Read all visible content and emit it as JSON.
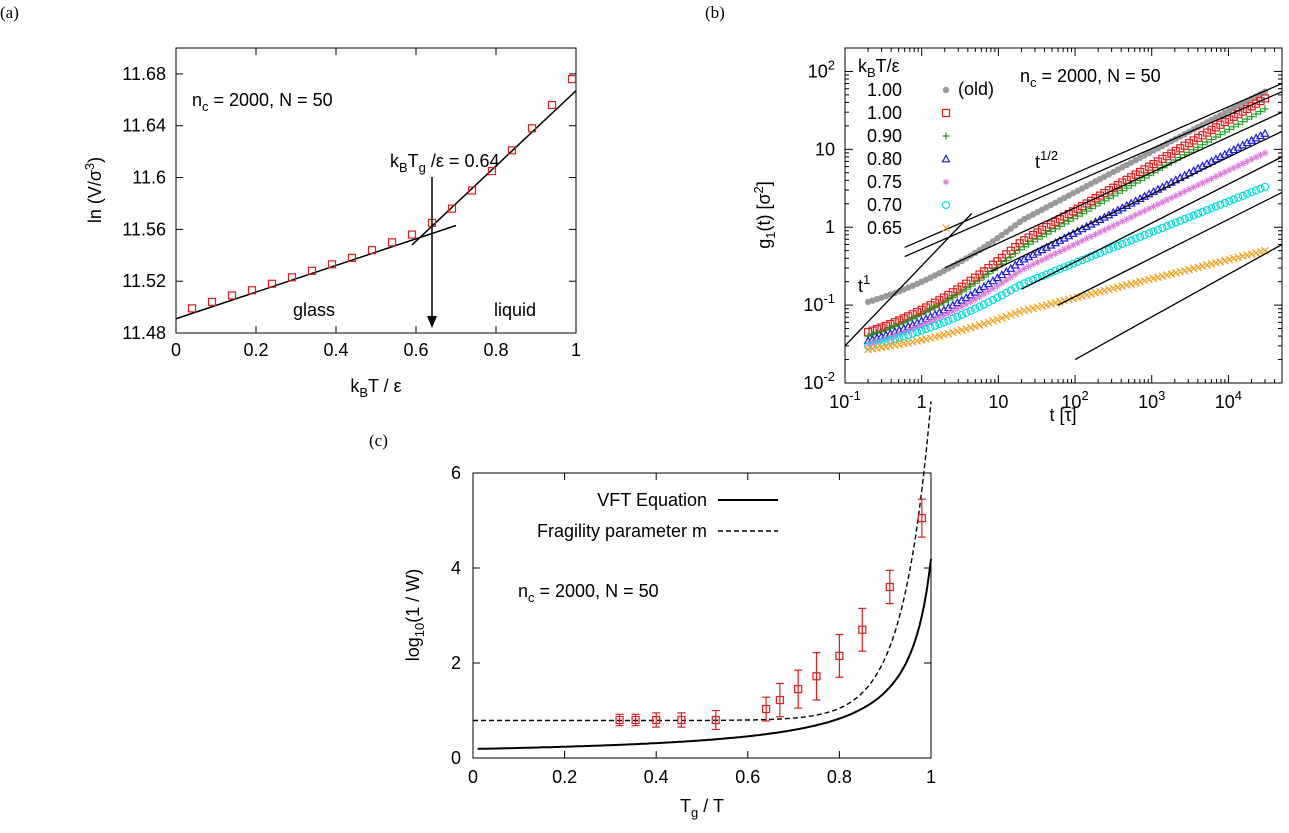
{
  "chart_data": [
    {
      "panel_label": "(a)",
      "type": "scatter",
      "annotation": "n_c = 2000, N = 50",
      "xlim": [
        0,
        1
      ],
      "ylim": [
        11.48,
        11.7
      ],
      "xticks": [
        "0",
        "0.2",
        "0.4",
        "0.6",
        "0.8",
        "1"
      ],
      "yticks": [
        "11.48",
        "11.52",
        "11.56",
        "11.6",
        "11.64",
        "11.68"
      ],
      "xlabel_parts": [
        "k",
        "B",
        "T / ε"
      ],
      "ylabel_parts": [
        "ln (V/σ",
        "3",
        ")"
      ],
      "tg_label_parts": [
        "k",
        "B",
        "T",
        "g",
        " /ε = 0.64"
      ],
      "tg": 0.64,
      "region_labels": [
        "glass",
        "liquid"
      ],
      "points": {
        "x": [
          0.04,
          0.09,
          0.14,
          0.19,
          0.24,
          0.29,
          0.34,
          0.39,
          0.44,
          0.49,
          0.54,
          0.59,
          0.64,
          0.69,
          0.74,
          0.79,
          0.84,
          0.89,
          0.94,
          0.99
        ],
        "y": [
          11.499,
          11.504,
          11.509,
          11.513,
          11.518,
          11.523,
          11.528,
          11.533,
          11.538,
          11.544,
          11.55,
          11.556,
          11.565,
          11.576,
          11.59,
          11.605,
          11.621,
          11.638,
          11.656,
          11.676
        ]
      },
      "fit_glass": {
        "x": [
          0,
          0.7
        ],
        "y": [
          11.491,
          11.563
        ]
      },
      "fit_liquid": {
        "x": [
          0.59,
          1.0
        ],
        "y": [
          11.548,
          11.667
        ]
      },
      "marker_color": "#e41a1c"
    },
    {
      "panel_label": "(b)",
      "type": "scatter",
      "xscale": "log",
      "yscale": "log",
      "xlim": [
        0.1,
        50000
      ],
      "ylim": [
        0.01,
        200
      ],
      "xlabel": "t [τ]",
      "ylabel_parts": [
        "g",
        "1",
        "(t) [σ",
        "2",
        "]"
      ],
      "annotation": "n_c = 2000, N = 50",
      "legend_title_parts": [
        "k",
        "B",
        "T/ε"
      ],
      "slope_labels": [
        {
          "base": "t",
          "exp": "1/2"
        },
        {
          "base": "t",
          "exp": "1"
        }
      ],
      "xticks": [
        {
          "base": "10",
          "exp": "-1"
        },
        {
          "base": "1",
          "exp": ""
        },
        {
          "base": "10",
          "exp": ""
        },
        {
          "base": "10",
          "exp": "2"
        },
        {
          "base": "10",
          "exp": "3"
        },
        {
          "base": "10",
          "exp": "4"
        }
      ],
      "yticks": [
        {
          "base": "10",
          "exp": "-2"
        },
        {
          "base": "10",
          "exp": "-1"
        },
        {
          "base": "1",
          "exp": ""
        },
        {
          "base": "10",
          "exp": ""
        },
        {
          "base": "10",
          "exp": "2"
        }
      ],
      "series": [
        {
          "name": "1.00",
          "tag": "(old)",
          "marker": "dot",
          "color": "#9a9a9a",
          "a": 0.28,
          "y0": 0.11,
          "y_end": 55
        },
        {
          "name": "1.00",
          "marker": "square",
          "color": "#e41a1c",
          "a": 0.25,
          "y0": 0.045,
          "y_end": 45
        },
        {
          "name": "0.90",
          "marker": "plus",
          "color": "#1a9e1a",
          "a": 0.24,
          "y0": 0.04,
          "y_end": 33
        },
        {
          "name": "0.80",
          "marker": "triangle",
          "color": "#1a1ae0",
          "a": 0.12,
          "y0": 0.035,
          "y_end": 16
        },
        {
          "name": "0.75",
          "marker": "star",
          "color": "#dd77dd",
          "a": 0.1,
          "y0": 0.032,
          "y_end": 9
        },
        {
          "name": "0.70",
          "marker": "circle",
          "color": "#00dddd",
          "a": 0.07,
          "y0": 0.03,
          "y_end": 3.3
        },
        {
          "name": "0.65",
          "marker": "cross",
          "color": "#f5a020",
          "a": 0.05,
          "y0": 0.027,
          "y_end": 0.5
        }
      ],
      "fit_lines": [
        {
          "x": [
            0.6,
            50000
          ],
          "y": [
            0.55,
            70
          ]
        },
        {
          "x": [
            0.6,
            50000
          ],
          "y": [
            0.42,
            55
          ]
        },
        {
          "x": [
            2,
            50000
          ],
          "y": [
            0.3,
            30
          ]
        },
        {
          "x": [
            8,
            50000
          ],
          "y": [
            0.27,
            17
          ]
        },
        {
          "x": [
            20,
            50000
          ],
          "y": [
            0.16,
            8
          ]
        },
        {
          "x": [
            60,
            50000
          ],
          "y": [
            0.1,
            2.8
          ]
        },
        {
          "x": [
            100,
            50000
          ],
          "y": [
            0.02,
            0.6
          ]
        },
        {
          "x": [
            0.1,
            4.5
          ],
          "y": [
            0.03,
            1.5
          ]
        }
      ]
    },
    {
      "panel_label": "(c)",
      "type": "scatter",
      "xlim": [
        0,
        1
      ],
      "ylim": [
        0,
        6
      ],
      "xticks": [
        "0",
        "0.2",
        "0.4",
        "0.6",
        "0.8",
        "1"
      ],
      "yticks": [
        "0",
        "2",
        "4",
        "6"
      ],
      "xlabel_parts": [
        "T",
        "g",
        " / T"
      ],
      "ylabel_parts": [
        "log",
        "10",
        "(1 / W)"
      ],
      "annotation": "n_c = 2000, N = 50",
      "legend": [
        "VFT Equation",
        "Fragility parameter m"
      ],
      "points": {
        "x": [
          0.32,
          0.355,
          0.4,
          0.455,
          0.53,
          0.64,
          0.67,
          0.71,
          0.75,
          0.8,
          0.85,
          0.91,
          0.98
        ],
        "y": [
          0.8,
          0.8,
          0.8,
          0.8,
          0.8,
          1.03,
          1.22,
          1.45,
          1.72,
          2.15,
          2.7,
          3.6,
          5.05
        ],
        "err": [
          0.12,
          0.12,
          0.15,
          0.15,
          0.2,
          0.25,
          0.35,
          0.4,
          0.5,
          0.45,
          0.45,
          0.35,
          0.4
        ]
      },
      "vft": {
        "a": -0.12,
        "b": 0.21,
        "x0": 1.05
      },
      "fragility": {
        "base": 0.79,
        "c": 5.6e-07,
        "k": 16.3
      },
      "marker_color": "#e41a1c"
    }
  ]
}
